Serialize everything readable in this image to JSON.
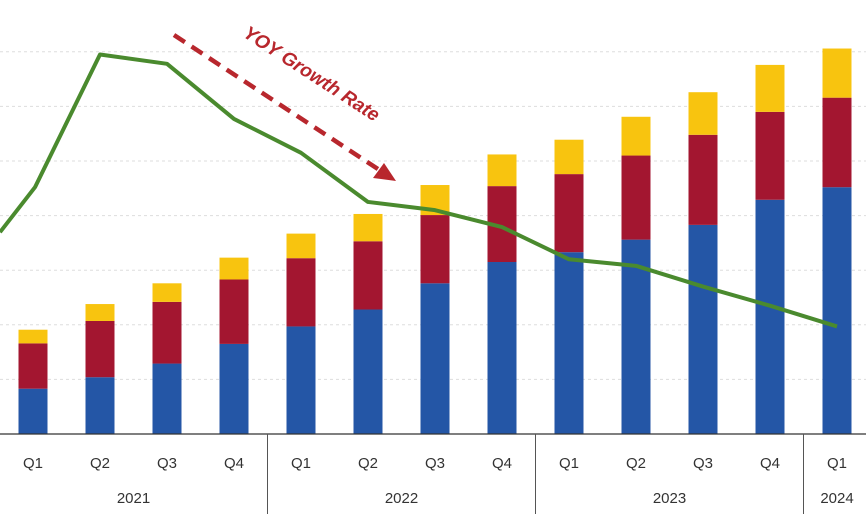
{
  "chart_data": {
    "type": "bar",
    "stacked": true,
    "grid": true,
    "ylim": [
      0,
      70
    ],
    "categories": [
      "Q1",
      "Q2",
      "Q3",
      "Q4",
      "Q1",
      "Q2",
      "Q3",
      "Q4",
      "Q1",
      "Q2",
      "Q3",
      "Q4",
      "Q1"
    ],
    "groups": [
      {
        "label": "2021",
        "count": 4
      },
      {
        "label": "2022",
        "count": 4
      },
      {
        "label": "2023",
        "count": 4
      },
      {
        "label": "2024",
        "count": 1
      }
    ],
    "series": [
      {
        "color": "#2456a6",
        "values": [
          8.3,
          10.4,
          12.9,
          16.5,
          19.7,
          22.8,
          27.6,
          31.5,
          33.3,
          35.6,
          38.3,
          42.9,
          45.2
        ]
      },
      {
        "color": "#a31630",
        "values": [
          8.3,
          10.3,
          11.3,
          11.8,
          12.5,
          12.5,
          12.5,
          13.9,
          14.3,
          15.4,
          16.5,
          16.1,
          16.4
        ]
      },
      {
        "color": "#f8c40f",
        "values": [
          2.5,
          3.1,
          3.4,
          4.0,
          4.5,
          5.0,
          5.5,
          5.8,
          6.3,
          7.1,
          7.8,
          8.6,
          9.0
        ]
      }
    ],
    "line": {
      "color": "#4a8a2e",
      "values": [
        45.2,
        69.5,
        67.8,
        57.7,
        51.5,
        42.5,
        41.0,
        37.9,
        32.0,
        30.8,
        27.0,
        23.5,
        19.7
      ]
    },
    "annotation": {
      "text": "YOY Growth Rate",
      "color": "#b8272d"
    }
  }
}
